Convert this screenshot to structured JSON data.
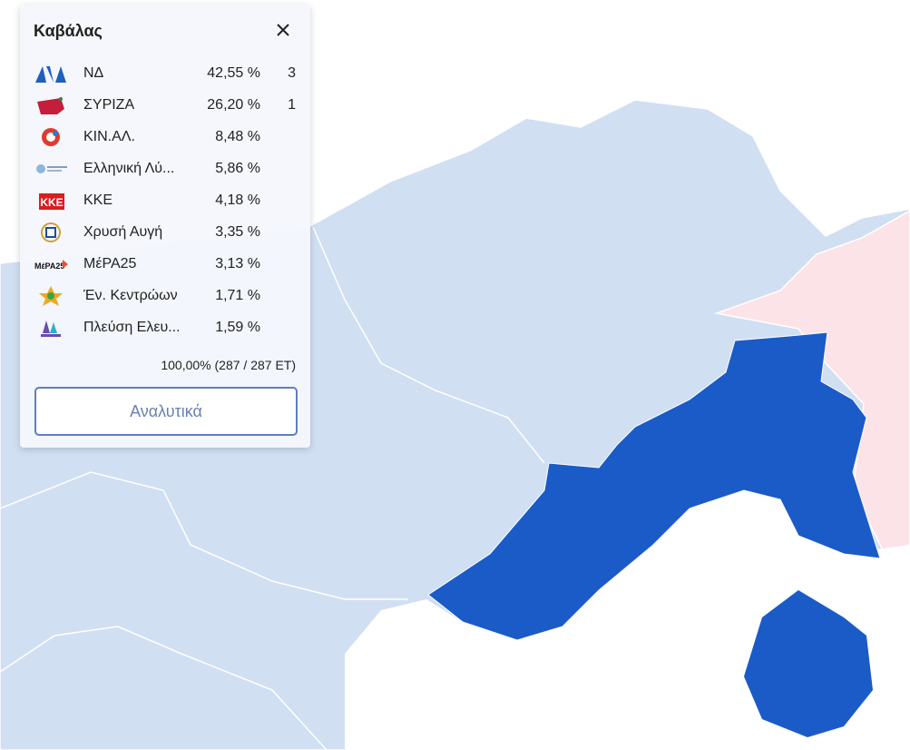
{
  "popup": {
    "title": "Καβάλας",
    "rows": [
      {
        "name": "ΝΔ",
        "percent": "42,55 %",
        "seats": "3"
      },
      {
        "name": "ΣΥΡΙΖΑ",
        "percent": "26,20 %",
        "seats": "1"
      },
      {
        "name": "ΚΙΝ.ΑΛ.",
        "percent": "8,48 %"
      },
      {
        "name": "Ελληνική Λύ...",
        "percent": "5,86 %"
      },
      {
        "name": "ΚΚΕ",
        "percent": "4,18 %"
      },
      {
        "name": "Χρυσή Αυγή",
        "percent": "3,35 %"
      },
      {
        "name": "ΜέΡΑ25",
        "percent": "3,13 %"
      },
      {
        "name": "Έν. Κεντρώων",
        "percent": "1,71 %"
      },
      {
        "name": "Πλεύση Ελευ...",
        "percent": "1,59 %"
      }
    ],
    "counted": "100,00% (287 / 287 ΕΤ)",
    "button": "Αναλυτικά"
  }
}
